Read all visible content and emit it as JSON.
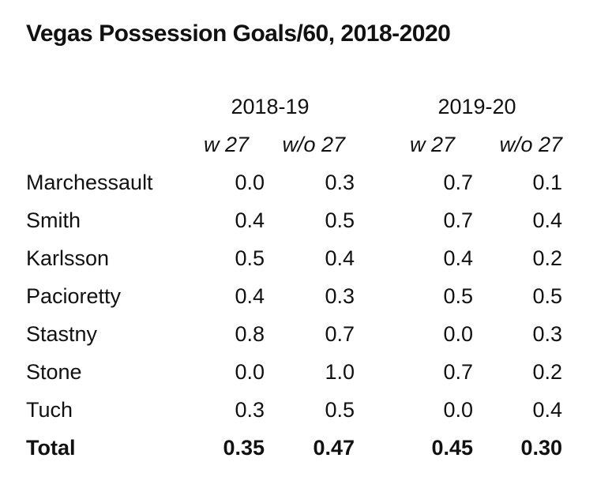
{
  "title": "Vegas Possession Goals/60, 2018-2020",
  "groups": [
    "2018-19",
    "2019-20"
  ],
  "subheaders": [
    "w 27",
    "w/o 27",
    "w 27",
    "w/o 27"
  ],
  "rows": [
    {
      "label": "Marchessault",
      "values": [
        "0.0",
        "0.3",
        "0.7",
        "0.1"
      ]
    },
    {
      "label": "Smith",
      "values": [
        "0.4",
        "0.5",
        "0.7",
        "0.4"
      ]
    },
    {
      "label": "Karlsson",
      "values": [
        "0.5",
        "0.4",
        "0.4",
        "0.2"
      ]
    },
    {
      "label": "Pacioretty",
      "values": [
        "0.4",
        "0.3",
        "0.5",
        "0.5"
      ]
    },
    {
      "label": "Stastny",
      "values": [
        "0.8",
        "0.7",
        "0.0",
        "0.3"
      ]
    },
    {
      "label": "Stone",
      "values": [
        "0.0",
        "1.0",
        "0.7",
        "0.2"
      ]
    },
    {
      "label": "Tuch",
      "values": [
        "0.3",
        "0.5",
        "0.0",
        "0.4"
      ]
    }
  ],
  "total": {
    "label": "Total",
    "values": [
      "0.35",
      "0.47",
      "0.45",
      "0.30"
    ]
  },
  "chart_data": {
    "type": "table",
    "title": "Vegas Possession Goals/60, 2018-2020",
    "column_groups": [
      "2018-19",
      "2019-20"
    ],
    "columns": [
      "w 27",
      "w/o 27",
      "w 27",
      "w/o 27"
    ],
    "row_labels": [
      "Marchessault",
      "Smith",
      "Karlsson",
      "Pacioretty",
      "Stastny",
      "Stone",
      "Tuch",
      "Total"
    ],
    "cells": [
      [
        0.0,
        0.3,
        0.7,
        0.1
      ],
      [
        0.4,
        0.5,
        0.7,
        0.4
      ],
      [
        0.5,
        0.4,
        0.4,
        0.2
      ],
      [
        0.4,
        0.3,
        0.5,
        0.5
      ],
      [
        0.8,
        0.7,
        0.0,
        0.3
      ],
      [
        0.0,
        1.0,
        0.7,
        0.2
      ],
      [
        0.3,
        0.5,
        0.0,
        0.4
      ],
      [
        0.35,
        0.47,
        0.45,
        0.3
      ]
    ]
  }
}
